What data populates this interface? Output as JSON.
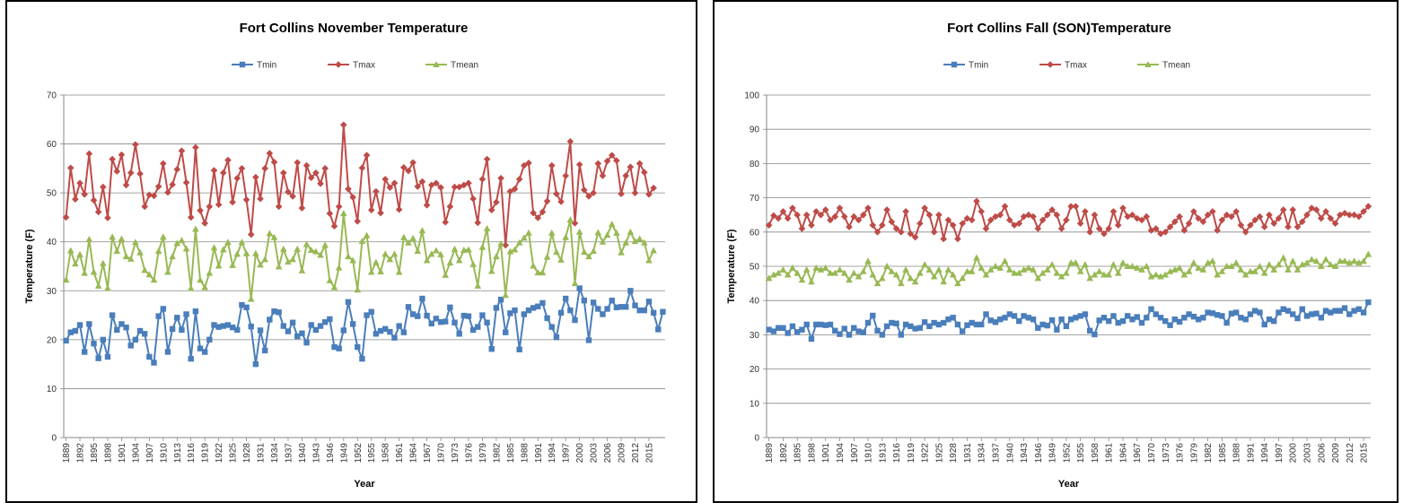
{
  "chart_data": [
    {
      "type": "line",
      "title": "Fort Collins November Temperature",
      "xlabel": "Year",
      "ylabel": "Temperature (F)",
      "ylim": [
        0,
        70
      ],
      "yticks": [
        0,
        10,
        20,
        30,
        40,
        50,
        60,
        70
      ],
      "grid": "horizontal",
      "legend_position": "top",
      "x_start": 1889,
      "x_end": 2015,
      "xtick_labels": [
        "1889",
        "1892",
        "1895",
        "1898",
        "1901",
        "1904",
        "1907",
        "1910",
        "1913",
        "1916",
        "1919",
        "1922",
        "1925",
        "1928",
        "1931",
        "1934",
        "1937",
        "1940",
        "1943",
        "1946",
        "1949",
        "1952",
        "1955",
        "1958",
        "1961",
        "1964",
        "1967",
        "1970",
        "1973",
        "1976",
        "1979",
        "1982",
        "1985",
        "1988",
        "1991",
        "1994",
        "1997",
        "2000",
        "2003",
        "2006",
        "2009",
        "2012",
        "2015"
      ],
      "series": [
        {
          "name": "Tmin",
          "color": "#4a7ebb",
          "marker": "square",
          "values": [
            19.8,
            21.5,
            21.8,
            23.0,
            17.5,
            23.2,
            19.2,
            16.2,
            20.0,
            16.5,
            25.0,
            22.0,
            23.2,
            22.5,
            18.8,
            20.0,
            21.8,
            21.2,
            16.5,
            15.3,
            24.8,
            26.3,
            17.5,
            22.2,
            24.5,
            22.0,
            25.2,
            16.1,
            25.8,
            18.2,
            17.5,
            20.0,
            23.0,
            22.6,
            22.8,
            23.0,
            22.5,
            22.0,
            27.1,
            26.6,
            22.7,
            15.0,
            21.9,
            17.8,
            24.1,
            25.8,
            25.6,
            22.8,
            21.7,
            23.5,
            20.7,
            21.3,
            19.4,
            23.0,
            22.0,
            22.8,
            23.6,
            24.2,
            18.5,
            18.2,
            21.9,
            27.7,
            23.2,
            18.5,
            16.1,
            25.0,
            25.7,
            21.2,
            21.8,
            22.2,
            21.6,
            20.4,
            22.8,
            21.5,
            26.7,
            25.2,
            24.8,
            28.4,
            24.9,
            23.3,
            24.3,
            23.6,
            23.7,
            26.6,
            23.5,
            21.2,
            24.9,
            24.8,
            22.0,
            22.6,
            25.0,
            23.5,
            18.1,
            26.5,
            28.2,
            21.5,
            25.4,
            26.0,
            18.0,
            25.2,
            26.0,
            26.5,
            26.8,
            27.5,
            24.4,
            22.6,
            20.5,
            25.5,
            28.4,
            26.0,
            24.0,
            30.5,
            28.0,
            19.9,
            27.6,
            26.3,
            25.2,
            26.3,
            28.0,
            26.6,
            26.7,
            26.7,
            30.0,
            27.0,
            26.0,
            26.0,
            27.8,
            25.5,
            22.1,
            25.7
          ]
        },
        {
          "name": "Tmax",
          "color": "#be4b48",
          "marker": "diamond",
          "values": [
            45.0,
            55.1,
            48.7,
            52.0,
            49.7,
            58.0,
            48.5,
            46.1,
            51.2,
            44.9,
            56.9,
            54.4,
            57.8,
            51.6,
            54.1,
            59.9,
            53.9,
            47.2,
            49.6,
            49.4,
            51.3,
            56.0,
            50.1,
            51.7,
            54.8,
            58.6,
            52.1,
            45.0,
            59.3,
            46.4,
            43.8,
            47.2,
            54.6,
            47.6,
            54.1,
            56.7,
            48.1,
            53.0,
            55.0,
            48.6,
            41.5,
            53.2,
            48.8,
            55.0,
            58.1,
            56.3,
            47.2,
            54.1,
            50.2,
            49.3,
            56.2,
            46.9,
            55.6,
            53.1,
            54.1,
            51.9,
            55.0,
            45.8,
            43.2,
            47.2,
            63.9,
            50.8,
            49.1,
            44.2,
            55.1,
            57.7,
            46.5,
            50.3,
            45.9,
            52.8,
            51.1,
            52.0,
            46.6,
            55.2,
            54.5,
            56.2,
            51.3,
            52.3,
            47.5,
            51.6,
            52.0,
            51.1,
            44.0,
            47.2,
            51.2,
            51.2,
            51.6,
            52.0,
            48.8,
            43.9,
            52.8,
            56.9,
            46.5,
            48.1,
            53.0,
            39.3,
            50.3,
            50.8,
            52.8,
            55.6,
            56.1,
            45.9,
            44.9,
            46.1,
            48.3,
            55.6,
            49.8,
            48.2,
            53.5,
            60.5,
            43.8,
            55.8,
            50.6,
            49.3,
            50.0,
            56.0,
            53.5,
            56.5,
            57.7,
            56.6,
            49.8,
            53.5,
            55.3,
            50.0,
            56.0,
            54.2,
            49.7,
            51.0
          ]
        },
        {
          "name": "Tmean",
          "color": "#98b954",
          "marker": "triangle",
          "values": [
            32.2,
            38.2,
            35.5,
            37.4,
            33.6,
            40.5,
            33.8,
            31.0,
            35.6,
            30.5,
            41.0,
            38.1,
            40.6,
            37.0,
            36.5,
            39.9,
            37.8,
            34.2,
            33.3,
            32.2,
            38.1,
            41.0,
            33.8,
            37.0,
            39.7,
            40.3,
            38.6,
            30.5,
            42.6,
            32.2,
            30.7,
            33.6,
            38.8,
            35.1,
            38.4,
            39.9,
            35.2,
            37.5,
            39.9,
            37.6,
            28.3,
            37.6,
            35.3,
            36.4,
            41.7,
            40.9,
            34.9,
            38.5,
            35.9,
            36.4,
            38.5,
            34.1,
            39.5,
            38.3,
            38.0,
            37.3,
            39.3,
            32.1,
            30.7,
            34.7,
            45.8,
            37.0,
            36.2,
            30.2,
            40.1,
            41.3,
            33.8,
            35.8,
            33.9,
            37.5,
            36.4,
            37.5,
            33.8,
            40.9,
            39.8,
            40.7,
            38.1,
            42.3,
            36.2,
            37.5,
            38.2,
            37.4,
            33.2,
            35.7,
            38.5,
            36.2,
            38.3,
            38.4,
            35.4,
            31.0,
            38.9,
            42.7,
            34.0,
            37.0,
            39.6,
            29.1,
            38.0,
            38.4,
            39.8,
            40.8,
            41.8,
            35.1,
            33.7,
            33.7,
            36.9,
            41.8,
            37.9,
            36.3,
            40.9,
            44.5,
            31.5,
            42.0,
            37.9,
            37.0,
            38.1,
            41.9,
            40.0,
            41.4,
            43.6,
            41.8,
            37.8,
            39.8,
            42.0,
            40.1,
            40.6,
            39.8,
            36.2,
            38.2
          ]
        }
      ]
    },
    {
      "type": "line",
      "title": "Fort Collins Fall (SON)Temperature",
      "xlabel": "Year",
      "ylabel": "Temperature (F)",
      "ylim": [
        0,
        100
      ],
      "yticks": [
        0,
        10,
        20,
        30,
        40,
        50,
        60,
        70,
        80,
        90,
        100
      ],
      "grid": "horizontal",
      "legend_position": "top",
      "x_start": 1889,
      "x_end": 2015,
      "xtick_labels": [
        "1889",
        "1892",
        "1895",
        "1898",
        "1901",
        "1904",
        "1907",
        "1910",
        "1913",
        "1916",
        "1919",
        "1922",
        "1925",
        "1928",
        "1931",
        "1934",
        "1937",
        "1940",
        "1943",
        "1946",
        "1949",
        "1952",
        "1955",
        "1958",
        "1961",
        "1964",
        "1967",
        "1970",
        "1973",
        "1976",
        "1979",
        "1982",
        "1985",
        "1988",
        "1991",
        "1994",
        "1997",
        "2000",
        "2003",
        "2006",
        "2009",
        "2012",
        "2015"
      ],
      "series": [
        {
          "name": "Tmin",
          "color": "#4a7ebb",
          "marker": "square",
          "values": [
            31.5,
            31.0,
            32.0,
            32.0,
            30.5,
            32.5,
            30.8,
            31.5,
            33.0,
            28.8,
            33.0,
            33.0,
            32.8,
            33.0,
            31.2,
            30.2,
            31.8,
            30.0,
            32.0,
            31.0,
            30.7,
            33.5,
            35.6,
            31.2,
            30.0,
            32.5,
            33.5,
            33.3,
            30.0,
            33.0,
            32.5,
            31.8,
            32.0,
            33.7,
            32.5,
            33.5,
            33.0,
            33.5,
            34.5,
            35.0,
            33.0,
            31.0,
            32.8,
            33.5,
            33.0,
            33.0,
            36.0,
            34.2,
            33.7,
            34.5,
            35.0,
            36.0,
            35.5,
            34.0,
            35.5,
            35.0,
            34.5,
            32.0,
            33.0,
            32.7,
            34.3,
            31.5,
            34.5,
            32.5,
            34.5,
            35.0,
            35.5,
            36.0,
            31.2,
            30.1,
            34.2,
            35.0,
            34.0,
            35.5,
            33.5,
            34.0,
            35.5,
            34.5,
            35.2,
            33.5,
            35.0,
            37.5,
            36.0,
            35.0,
            34.0,
            32.8,
            34.5,
            33.8,
            35.0,
            36.0,
            35.3,
            34.5,
            35.0,
            36.5,
            36.3,
            35.8,
            35.5,
            33.5,
            36.2,
            36.5,
            35.0,
            34.5,
            36.0,
            37.0,
            36.5,
            33.0,
            34.5,
            34.0,
            36.5,
            37.5,
            37.0,
            36.0,
            34.8,
            37.5,
            35.5,
            36.0,
            36.2,
            35.0,
            37.0,
            36.5,
            37.0,
            37.0,
            37.8,
            36.0,
            37.0,
            37.5,
            36.5,
            39.5
          ]
        },
        {
          "name": "Tmax",
          "color": "#be4b48",
          "marker": "diamond",
          "values": [
            62.0,
            64.8,
            64.0,
            66.0,
            64.0,
            67.0,
            65.0,
            61.0,
            65.0,
            62.0,
            66.0,
            65.0,
            66.5,
            63.5,
            64.5,
            67.0,
            64.5,
            61.5,
            64.5,
            63.5,
            65.0,
            67.0,
            62.0,
            60.0,
            62.0,
            66.5,
            63.0,
            61.0,
            60.0,
            66.0,
            59.5,
            58.5,
            62.5,
            67.0,
            65.0,
            60.0,
            65.0,
            58.0,
            63.5,
            62.0,
            58.0,
            62.5,
            64.0,
            63.5,
            69.0,
            66.0,
            61.0,
            63.5,
            64.5,
            65.0,
            67.5,
            63.5,
            62.0,
            62.5,
            64.5,
            65.0,
            64.5,
            61.0,
            63.5,
            65.0,
            66.5,
            65.0,
            61.0,
            63.5,
            67.5,
            67.5,
            62.5,
            66.0,
            60.0,
            65.0,
            61.0,
            59.5,
            61.0,
            66.0,
            62.0,
            67.0,
            64.5,
            65.0,
            64.0,
            63.5,
            64.5,
            60.5,
            61.0,
            59.5,
            60.0,
            61.5,
            63.0,
            64.5,
            60.5,
            62.5,
            66.0,
            64.0,
            63.0,
            65.0,
            66.0,
            60.5,
            63.5,
            65.0,
            64.5,
            66.0,
            62.0,
            60.0,
            62.0,
            63.5,
            64.5,
            61.5,
            65.0,
            62.5,
            64.0,
            66.5,
            61.5,
            66.5,
            61.5,
            63.0,
            65.0,
            67.0,
            66.5,
            64.0,
            66.0,
            64.0,
            62.5,
            65.0,
            65.5,
            65.0,
            65.0,
            64.5,
            66.0,
            67.5
          ]
        },
        {
          "name": "Tmean",
          "color": "#98b954",
          "marker": "triangle",
          "values": [
            46.5,
            47.5,
            48.0,
            49.0,
            47.5,
            49.5,
            48.0,
            46.0,
            49.0,
            45.5,
            49.5,
            49.0,
            49.5,
            48.0,
            48.0,
            49.0,
            48.0,
            46.0,
            48.0,
            47.0,
            48.5,
            51.5,
            47.5,
            45.0,
            46.5,
            50.0,
            48.5,
            47.5,
            45.0,
            49.0,
            46.5,
            45.5,
            48.0,
            50.5,
            49.0,
            47.0,
            49.0,
            45.5,
            49.0,
            47.5,
            45.0,
            46.5,
            48.5,
            48.5,
            52.5,
            49.5,
            47.5,
            49.0,
            50.0,
            49.5,
            51.5,
            49.0,
            48.0,
            48.0,
            49.0,
            49.5,
            49.0,
            46.5,
            48.0,
            49.0,
            50.5,
            48.0,
            47.0,
            48.0,
            51.0,
            51.0,
            48.5,
            50.5,
            46.5,
            47.5,
            48.5,
            47.5,
            47.5,
            50.5,
            48.0,
            51.0,
            50.0,
            50.0,
            49.5,
            49.0,
            50.0,
            47.0,
            47.5,
            47.0,
            47.5,
            48.5,
            49.0,
            49.5,
            47.5,
            48.5,
            51.0,
            49.5,
            49.0,
            51.0,
            51.5,
            47.5,
            48.5,
            50.0,
            50.0,
            51.0,
            49.0,
            47.5,
            48.5,
            48.5,
            50.0,
            48.0,
            50.5,
            49.0,
            50.5,
            52.5,
            49.0,
            51.5,
            49.0,
            50.5,
            51.0,
            52.0,
            51.5,
            50.0,
            52.0,
            50.5,
            50.0,
            51.5,
            51.5,
            51.0,
            51.5,
            51.0,
            51.5,
            53.5
          ]
        }
      ]
    }
  ]
}
